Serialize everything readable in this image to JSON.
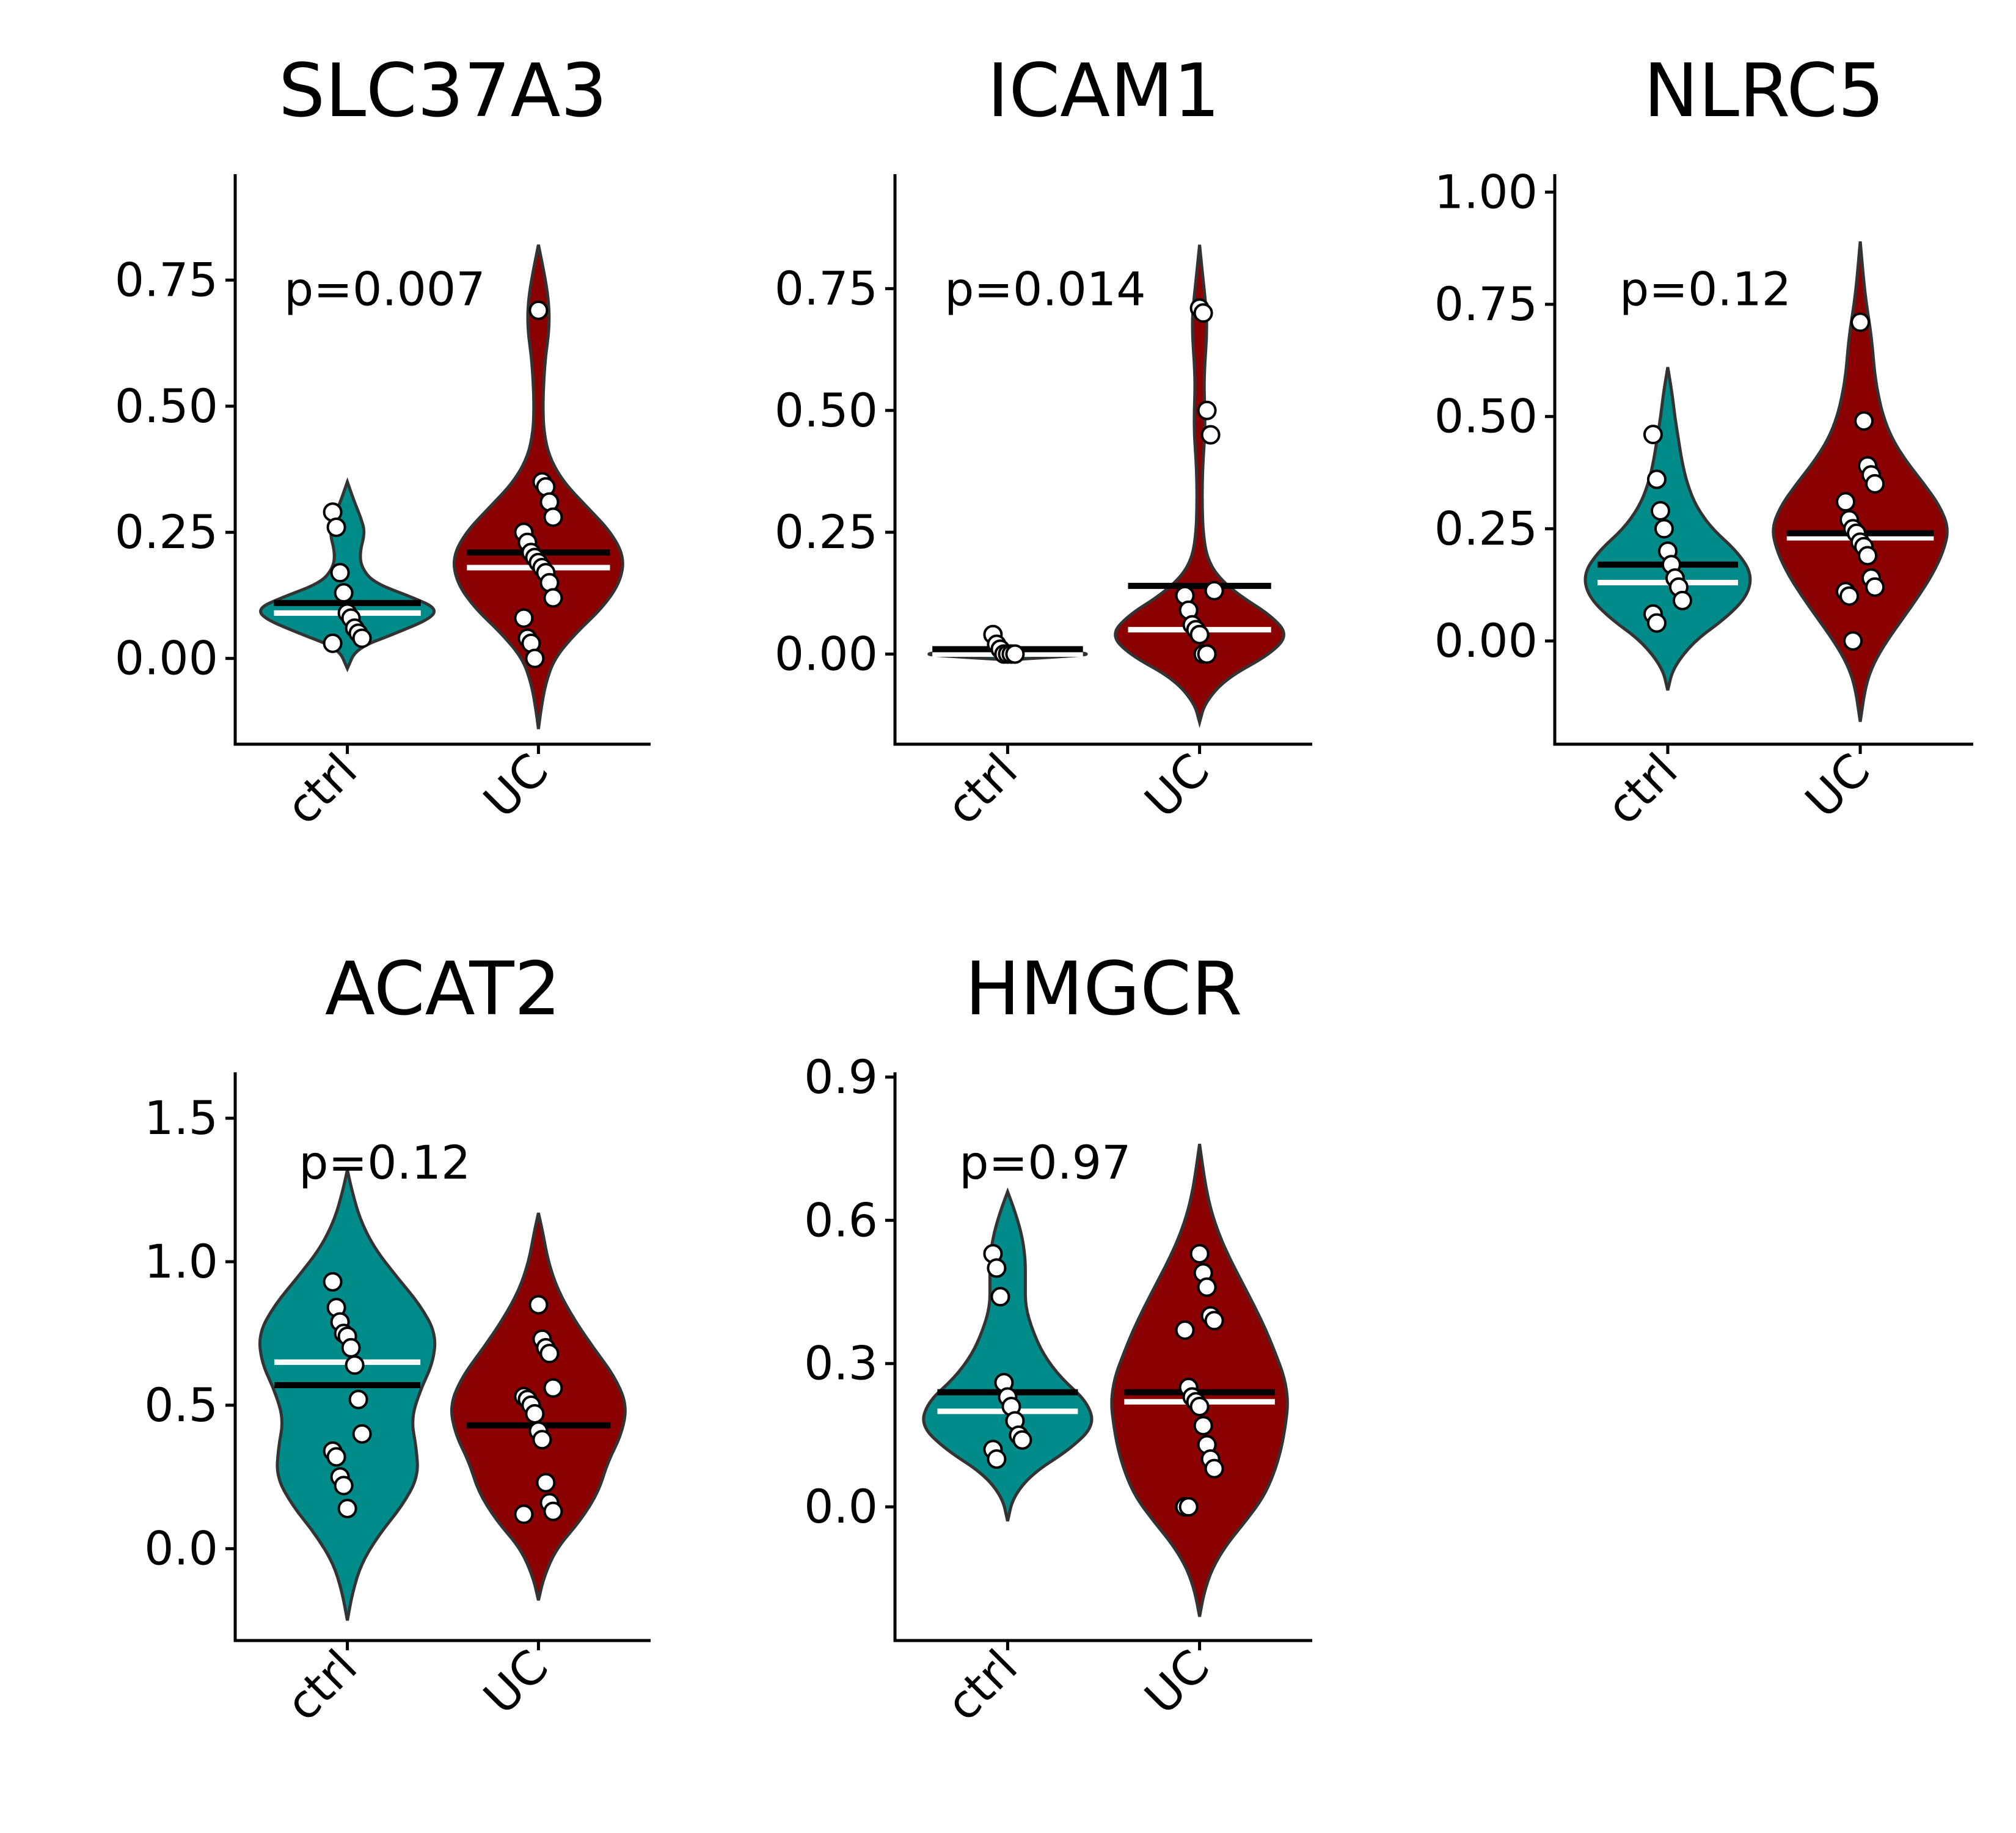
{
  "figure": {
    "colors": {
      "ctrl": "#008b8b",
      "UC": "#8b0000",
      "mean_line": "#000000",
      "median_line": "#ffffff"
    }
  },
  "chart_data": [
    {
      "type": "violin",
      "title": "SLC37A3",
      "annotation": "p=0.007",
      "categories": [
        "ctrl",
        "UC"
      ],
      "yticks": [
        0.0,
        0.25,
        0.5,
        0.75
      ],
      "ytick_labels": [
        "0.00",
        "0.25",
        "0.50",
        "0.75"
      ],
      "ylim": [
        -0.17,
        0.96
      ],
      "groups": [
        {
          "name": "ctrl",
          "mean": 0.11,
          "median": 0.09,
          "violin_range": [
            -0.02,
            0.35
          ],
          "points": [
            0.29,
            0.26,
            0.17,
            0.13,
            0.09,
            0.08,
            0.06,
            0.05,
            0.04,
            0.03
          ],
          "density": [
            [
              -0.02,
              0.0
            ],
            [
              0.02,
              0.1
            ],
            [
              0.05,
              0.55
            ],
            [
              0.08,
              0.95
            ],
            [
              0.1,
              1.0
            ],
            [
              0.12,
              0.75
            ],
            [
              0.15,
              0.3
            ],
            [
              0.18,
              0.16
            ],
            [
              0.21,
              0.14
            ],
            [
              0.25,
              0.2
            ],
            [
              0.28,
              0.15
            ],
            [
              0.31,
              0.08
            ],
            [
              0.35,
              0.0
            ]
          ]
        },
        {
          "name": "UC",
          "mean": 0.21,
          "median": 0.18,
          "violin_range": [
            -0.14,
            0.82
          ],
          "points": [
            0.69,
            0.35,
            0.34,
            0.31,
            0.28,
            0.25,
            0.23,
            0.21,
            0.2,
            0.19,
            0.18,
            0.17,
            0.15,
            0.12,
            0.08,
            0.04,
            0.03,
            0.0
          ],
          "density": [
            [
              -0.14,
              0.0
            ],
            [
              -0.1,
              0.03
            ],
            [
              -0.05,
              0.08
            ],
            [
              0.0,
              0.18
            ],
            [
              0.05,
              0.42
            ],
            [
              0.1,
              0.72
            ],
            [
              0.15,
              0.92
            ],
            [
              0.2,
              0.97
            ],
            [
              0.25,
              0.82
            ],
            [
              0.3,
              0.55
            ],
            [
              0.35,
              0.28
            ],
            [
              0.4,
              0.12
            ],
            [
              0.45,
              0.06
            ],
            [
              0.5,
              0.05
            ],
            [
              0.55,
              0.06
            ],
            [
              0.6,
              0.08
            ],
            [
              0.65,
              0.12
            ],
            [
              0.7,
              0.12
            ],
            [
              0.75,
              0.08
            ],
            [
              0.82,
              0.0
            ]
          ]
        }
      ]
    },
    {
      "type": "violin",
      "title": "ICAM1",
      "annotation": "p=0.014",
      "categories": [
        "ctrl",
        "UC"
      ],
      "yticks": [
        0.0,
        0.25,
        0.5,
        0.75
      ],
      "ytick_labels": [
        "0.00",
        "0.25",
        "0.50",
        "0.75"
      ],
      "ylim": [
        -0.185,
        0.985
      ],
      "groups": [
        {
          "name": "ctrl",
          "mean": 0.01,
          "median": 0.0,
          "violin_range": [
            -0.01,
            0.01
          ],
          "points": [
            0.04,
            0.02,
            0.01,
            0.0,
            0.0,
            0.0,
            0.0
          ],
          "density": [
            [
              -0.012,
              0.0
            ],
            [
              -0.006,
              0.55
            ],
            [
              0.0,
              1.0
            ],
            [
              0.006,
              0.55
            ],
            [
              0.012,
              0.0
            ]
          ]
        },
        {
          "name": "UC",
          "mean": 0.14,
          "median": 0.05,
          "violin_range": [
            -0.14,
            0.84
          ],
          "points": [
            0.71,
            0.7,
            0.5,
            0.45,
            0.13,
            0.12,
            0.09,
            0.06,
            0.05,
            0.04,
            0.0,
            0.0
          ],
          "density": [
            [
              -0.14,
              0.0
            ],
            [
              -0.1,
              0.06
            ],
            [
              -0.05,
              0.3
            ],
            [
              0.0,
              0.8
            ],
            [
              0.04,
              1.0
            ],
            [
              0.08,
              0.8
            ],
            [
              0.12,
              0.45
            ],
            [
              0.16,
              0.2
            ],
            [
              0.2,
              0.08
            ],
            [
              0.25,
              0.04
            ],
            [
              0.3,
              0.03
            ],
            [
              0.35,
              0.03
            ],
            [
              0.4,
              0.04
            ],
            [
              0.45,
              0.06
            ],
            [
              0.5,
              0.06
            ],
            [
              0.55,
              0.05
            ],
            [
              0.6,
              0.06
            ],
            [
              0.65,
              0.08
            ],
            [
              0.7,
              0.08
            ],
            [
              0.75,
              0.05
            ],
            [
              0.84,
              0.0
            ]
          ]
        }
      ]
    },
    {
      "type": "violin",
      "title": "NLRC5",
      "annotation": "p=0.12",
      "categories": [
        "ctrl",
        "UC"
      ],
      "yticks": [
        0.0,
        0.25,
        0.5,
        0.75,
        1.0
      ],
      "ytick_labels": [
        "0.00",
        "0.25",
        "0.50",
        "0.75",
        "1.00"
      ],
      "ylim": [
        -0.23,
        1.04
      ],
      "groups": [
        {
          "name": "ctrl",
          "mean": 0.17,
          "median": 0.13,
          "violin_range": [
            -0.11,
            0.61
          ],
          "points": [
            0.46,
            0.36,
            0.29,
            0.25,
            0.2,
            0.17,
            0.14,
            0.12,
            0.09,
            0.06,
            0.04
          ],
          "density": [
            [
              -0.11,
              0.0
            ],
            [
              -0.06,
              0.06
            ],
            [
              0.0,
              0.3
            ],
            [
              0.05,
              0.65
            ],
            [
              0.1,
              0.9
            ],
            [
              0.15,
              0.95
            ],
            [
              0.2,
              0.78
            ],
            [
              0.25,
              0.5
            ],
            [
              0.3,
              0.32
            ],
            [
              0.35,
              0.22
            ],
            [
              0.4,
              0.16
            ],
            [
              0.45,
              0.12
            ],
            [
              0.5,
              0.08
            ],
            [
              0.55,
              0.05
            ],
            [
              0.61,
              0.0
            ]
          ]
        },
        {
          "name": "UC",
          "mean": 0.24,
          "median": 0.23,
          "violin_range": [
            -0.18,
            0.89
          ],
          "points": [
            0.71,
            0.49,
            0.39,
            0.37,
            0.35,
            0.31,
            0.27,
            0.25,
            0.24,
            0.22,
            0.21,
            0.19,
            0.14,
            0.12,
            0.11,
            0.1,
            0.0
          ],
          "density": [
            [
              -0.18,
              0.0
            ],
            [
              -0.1,
              0.06
            ],
            [
              -0.05,
              0.15
            ],
            [
              0.0,
              0.3
            ],
            [
              0.05,
              0.48
            ],
            [
              0.1,
              0.66
            ],
            [
              0.15,
              0.82
            ],
            [
              0.2,
              0.94
            ],
            [
              0.25,
              1.0
            ],
            [
              0.3,
              0.9
            ],
            [
              0.35,
              0.72
            ],
            [
              0.4,
              0.52
            ],
            [
              0.45,
              0.36
            ],
            [
              0.5,
              0.26
            ],
            [
              0.55,
              0.2
            ],
            [
              0.6,
              0.16
            ],
            [
              0.65,
              0.14
            ],
            [
              0.7,
              0.11
            ],
            [
              0.75,
              0.07
            ],
            [
              0.8,
              0.04
            ],
            [
              0.89,
              0.0
            ]
          ]
        }
      ]
    },
    {
      "type": "violin",
      "title": "ACAT2",
      "annotation": "p=0.12",
      "categories": [
        "ctrl",
        "UC"
      ],
      "yticks": [
        0.0,
        0.5,
        1.0,
        1.5
      ],
      "ytick_labels": [
        "0.0",
        "0.5",
        "1.0",
        "1.5"
      ],
      "ylim": [
        -0.32,
        1.66
      ],
      "groups": [
        {
          "name": "ctrl",
          "mean": 0.57,
          "median": 0.65,
          "violin_range": [
            -0.25,
            1.32
          ],
          "points": [
            0.93,
            0.84,
            0.79,
            0.75,
            0.74,
            0.7,
            0.64,
            0.52,
            0.4,
            0.34,
            0.32,
            0.25,
            0.22,
            0.14
          ],
          "density": [
            [
              -0.25,
              0.0
            ],
            [
              -0.15,
              0.06
            ],
            [
              -0.05,
              0.16
            ],
            [
              0.05,
              0.36
            ],
            [
              0.15,
              0.62
            ],
            [
              0.25,
              0.8
            ],
            [
              0.35,
              0.78
            ],
            [
              0.45,
              0.72
            ],
            [
              0.55,
              0.82
            ],
            [
              0.65,
              0.97
            ],
            [
              0.75,
              1.0
            ],
            [
              0.85,
              0.82
            ],
            [
              0.95,
              0.55
            ],
            [
              1.05,
              0.3
            ],
            [
              1.15,
              0.14
            ],
            [
              1.25,
              0.05
            ],
            [
              1.32,
              0.0
            ]
          ]
        },
        {
          "name": "UC",
          "mean": 0.43,
          "median": 0.43,
          "violin_range": [
            -0.18,
            1.17
          ],
          "points": [
            0.85,
            0.73,
            0.7,
            0.68,
            0.56,
            0.53,
            0.52,
            0.5,
            0.47,
            0.41,
            0.38,
            0.23,
            0.16,
            0.13,
            0.12
          ],
          "density": [
            [
              -0.18,
              0.0
            ],
            [
              -0.1,
              0.06
            ],
            [
              0.0,
              0.2
            ],
            [
              0.1,
              0.48
            ],
            [
              0.2,
              0.68
            ],
            [
              0.3,
              0.78
            ],
            [
              0.4,
              0.94
            ],
            [
              0.5,
              1.0
            ],
            [
              0.6,
              0.86
            ],
            [
              0.7,
              0.62
            ],
            [
              0.8,
              0.4
            ],
            [
              0.9,
              0.22
            ],
            [
              1.0,
              0.11
            ],
            [
              1.1,
              0.05
            ],
            [
              1.17,
              0.0
            ]
          ]
        }
      ]
    },
    {
      "type": "violin",
      "title": "HMGCR",
      "annotation": "p=0.97",
      "categories": [
        "ctrl",
        "UC"
      ],
      "yticks": [
        0.0,
        0.3,
        0.6,
        0.9
      ],
      "ytick_labels": [
        "0.0",
        "0.3",
        "0.6",
        "0.9"
      ],
      "ylim": [
        -0.28,
        0.91
      ],
      "groups": [
        {
          "name": "ctrl",
          "mean": 0.24,
          "median": 0.2,
          "violin_range": [
            -0.03,
            0.66
          ],
          "points": [
            0.53,
            0.5,
            0.44,
            0.26,
            0.23,
            0.21,
            0.18,
            0.15,
            0.14,
            0.12,
            0.1
          ],
          "density": [
            [
              -0.03,
              0.0
            ],
            [
              0.02,
              0.06
            ],
            [
              0.07,
              0.28
            ],
            [
              0.12,
              0.7
            ],
            [
              0.17,
              0.98
            ],
            [
              0.22,
              0.9
            ],
            [
              0.27,
              0.6
            ],
            [
              0.32,
              0.4
            ],
            [
              0.37,
              0.28
            ],
            [
              0.42,
              0.2
            ],
            [
              0.47,
              0.2
            ],
            [
              0.52,
              0.2
            ],
            [
              0.57,
              0.16
            ],
            [
              0.62,
              0.08
            ],
            [
              0.66,
              0.0
            ]
          ]
        },
        {
          "name": "UC",
          "mean": 0.24,
          "median": 0.22,
          "violin_range": [
            -0.23,
            0.76
          ],
          "points": [
            0.53,
            0.49,
            0.46,
            0.4,
            0.39,
            0.37,
            0.25,
            0.23,
            0.22,
            0.21,
            0.17,
            0.13,
            0.1,
            0.08,
            0.0,
            0.0
          ],
          "density": [
            [
              -0.23,
              0.0
            ],
            [
              -0.18,
              0.05
            ],
            [
              -0.13,
              0.14
            ],
            [
              -0.08,
              0.3
            ],
            [
              -0.03,
              0.52
            ],
            [
              0.02,
              0.72
            ],
            [
              0.07,
              0.84
            ],
            [
              0.12,
              0.92
            ],
            [
              0.17,
              0.97
            ],
            [
              0.22,
              1.0
            ],
            [
              0.27,
              0.96
            ],
            [
              0.32,
              0.86
            ],
            [
              0.37,
              0.75
            ],
            [
              0.42,
              0.62
            ],
            [
              0.47,
              0.48
            ],
            [
              0.52,
              0.34
            ],
            [
              0.57,
              0.22
            ],
            [
              0.62,
              0.13
            ],
            [
              0.67,
              0.07
            ],
            [
              0.72,
              0.03
            ],
            [
              0.76,
              0.0
            ]
          ]
        }
      ]
    }
  ]
}
